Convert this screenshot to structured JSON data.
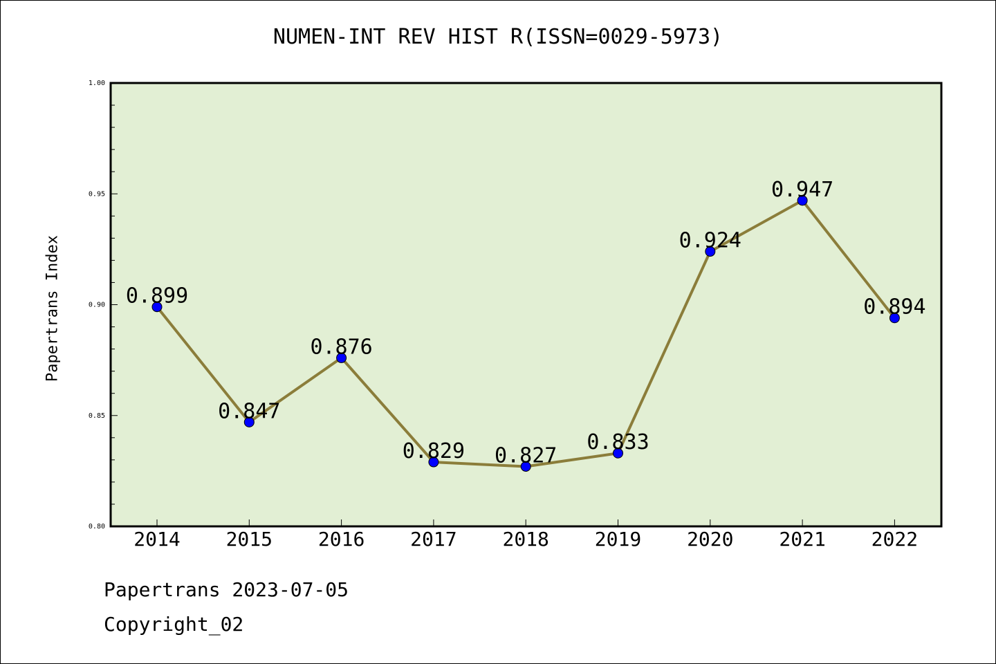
{
  "chart_data": {
    "type": "line",
    "title": "NUMEN-INT REV HIST R(ISSN=0029-5973)",
    "xlabel": "",
    "ylabel": "Papertrans Index",
    "categories": [
      "2014",
      "2015",
      "2016",
      "2017",
      "2018",
      "2019",
      "2020",
      "2021",
      "2022"
    ],
    "values": [
      0.899,
      0.847,
      0.876,
      0.829,
      0.827,
      0.833,
      0.924,
      0.947,
      0.894
    ],
    "data_labels": [
      "0.899",
      "0.847",
      "0.876",
      "0.829",
      "0.827",
      "0.833",
      "0.924",
      "0.947",
      "0.894"
    ],
    "ylim": [
      0.8,
      1.0
    ],
    "yticks": [
      "0.80",
      "0.85",
      "0.90",
      "0.95",
      "1.00"
    ],
    "grid": false,
    "colors": {
      "plot_background": "#e2efd4",
      "line": "#8b7d3a",
      "marker": "#0000ff"
    }
  },
  "footer": {
    "date_text": "Papertrans 2023-07-05",
    "copyright_text": "Copyright_02"
  }
}
